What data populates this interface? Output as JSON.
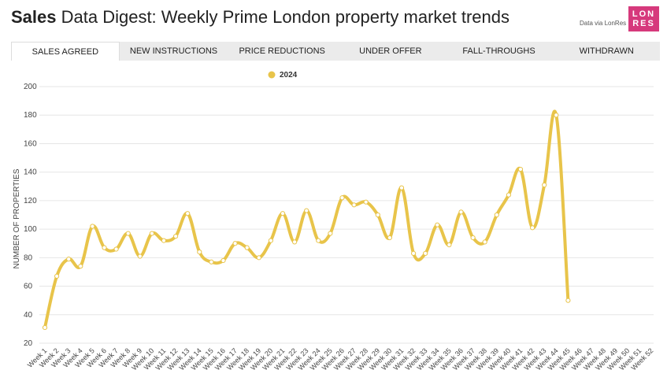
{
  "header": {
    "title_bold": "Sales",
    "title_rest": " Data Digest: Weekly Prime London property market trends",
    "credit": "Data via LonRes",
    "logo_line1": "LON",
    "logo_line2": "RES"
  },
  "tabs": [
    {
      "label": "SALES AGREED",
      "active": true
    },
    {
      "label": "NEW INSTRUCTIONS",
      "active": false
    },
    {
      "label": "PRICE REDUCTIONS",
      "active": false
    },
    {
      "label": "UNDER OFFER",
      "active": false
    },
    {
      "label": "FALL-THROUGHS",
      "active": false
    },
    {
      "label": "WITHDRAWN",
      "active": false
    }
  ],
  "colors": {
    "series": "#e8c44a",
    "grid": "#e6e6e6",
    "brand": "#d6397c"
  },
  "chart_data": {
    "type": "line",
    "title": "",
    "ylabel": "NUMBER OF PROPERTIES",
    "xlabel": "",
    "ylim": [
      20,
      200
    ],
    "yticks": [
      20,
      40,
      60,
      80,
      100,
      120,
      140,
      160,
      180,
      200
    ],
    "legend_position": "top-center",
    "categories": [
      "Week 1",
      "Week 2",
      "Week 3",
      "Week 4",
      "Week 5",
      "Week 6",
      "Week 7",
      "Week 8",
      "Week 9",
      "Week 10",
      "Week 11",
      "Week 12",
      "Week 13",
      "Week 14",
      "Week 15",
      "Week 16",
      "Week 17",
      "Week 18",
      "Week 19",
      "Week 20",
      "Week 21",
      "Week 22",
      "Week 23",
      "Week 24",
      "Week 25",
      "Week 26",
      "Week 27",
      "Week 28",
      "Week 29",
      "Week 30",
      "Week 31",
      "Week 32",
      "Week 33",
      "Week 34",
      "Week 35",
      "Week 36",
      "Week 37",
      "Week 38",
      "Week 39",
      "Week 40",
      "Week 41",
      "Week 42",
      "Week 43",
      "Week 44",
      "Week 45",
      "Week 46",
      "Week 47",
      "Week 48",
      "Week 49",
      "Week 50",
      "Week 51",
      "Week 52"
    ],
    "series": [
      {
        "name": "2024",
        "values": [
          31,
          67,
          79,
          74,
          102,
          87,
          86,
          97,
          81,
          97,
          92,
          95,
          111,
          84,
          77,
          78,
          90,
          87,
          80,
          92,
          111,
          91,
          113,
          92,
          97,
          122,
          117,
          119,
          110,
          94,
          129,
          83,
          83,
          103,
          89,
          112,
          94,
          91,
          110,
          124,
          142,
          101,
          131,
          180,
          50,
          null,
          null,
          null,
          null,
          null,
          null,
          null
        ]
      }
    ]
  }
}
